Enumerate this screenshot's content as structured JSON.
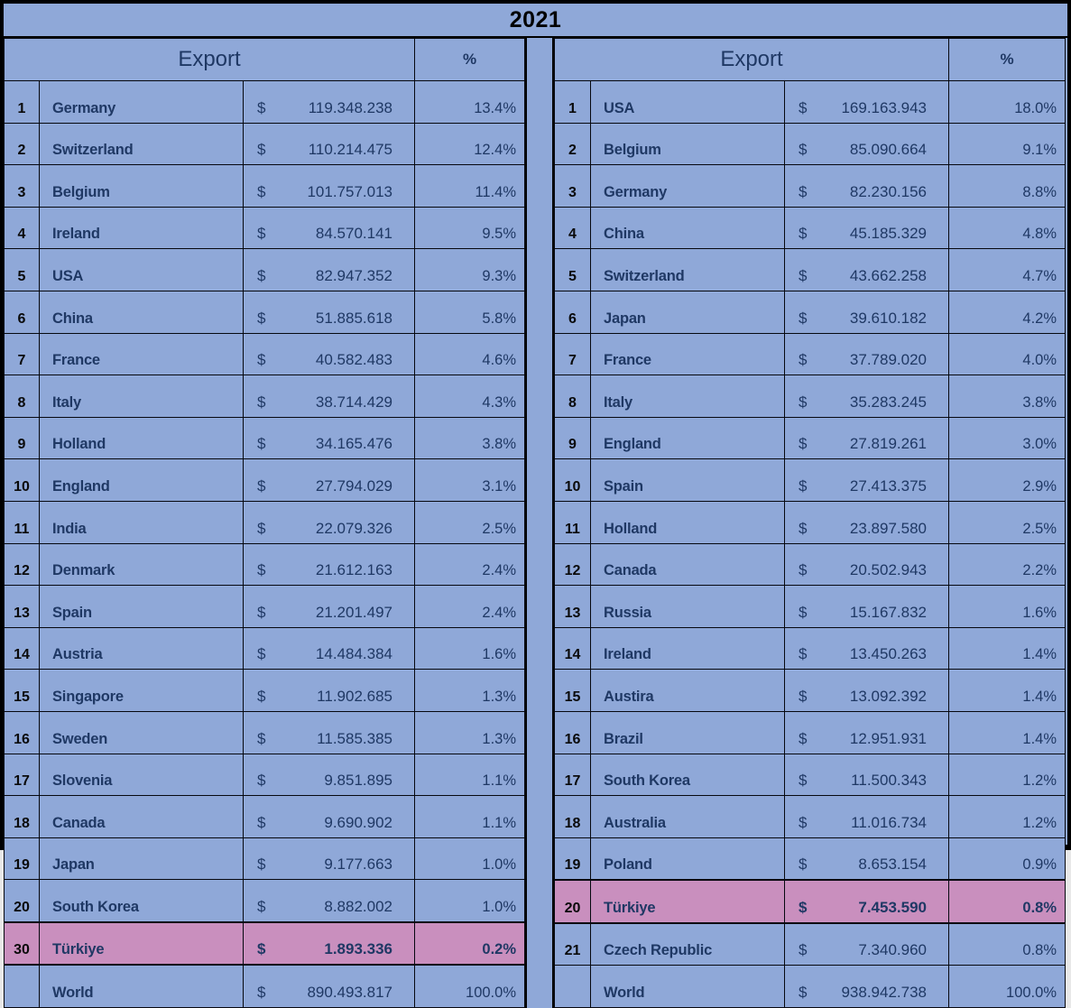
{
  "title": "2021",
  "colors": {
    "background": "#8FA8D8",
    "highlight_row": "#C98FBE",
    "text": "#1F3864",
    "rank_text": "#0A0A0A",
    "border": "#000000"
  },
  "chart_data": [
    {
      "type": "table",
      "position": "left",
      "export_label": "Export",
      "percent_label": "%",
      "columns": [
        "rank",
        "country",
        "export_usd",
        "percent"
      ],
      "rows": [
        {
          "rank": "1",
          "country": "Germany",
          "currency": "$",
          "value": "119.348.238",
          "percent": "13.4%",
          "highlight": false
        },
        {
          "rank": "2",
          "country": "Switzerland",
          "currency": "$",
          "value": "110.214.475",
          "percent": "12.4%",
          "highlight": false
        },
        {
          "rank": "3",
          "country": "Belgium",
          "currency": "$",
          "value": "101.757.013",
          "percent": "11.4%",
          "highlight": false
        },
        {
          "rank": "4",
          "country": "Ireland",
          "currency": "$",
          "value": "84.570.141",
          "percent": "9.5%",
          "highlight": false
        },
        {
          "rank": "5",
          "country": "USA",
          "currency": "$",
          "value": "82.947.352",
          "percent": "9.3%",
          "highlight": false
        },
        {
          "rank": "6",
          "country": "China",
          "currency": "$",
          "value": "51.885.618",
          "percent": "5.8%",
          "highlight": false
        },
        {
          "rank": "7",
          "country": "France",
          "currency": "$",
          "value": "40.582.483",
          "percent": "4.6%",
          "highlight": false
        },
        {
          "rank": "8",
          "country": "Italy",
          "currency": "$",
          "value": "38.714.429",
          "percent": "4.3%",
          "highlight": false
        },
        {
          "rank": "9",
          "country": "Holland",
          "currency": "$",
          "value": "34.165.476",
          "percent": "3.8%",
          "highlight": false
        },
        {
          "rank": "10",
          "country": "England",
          "currency": "$",
          "value": "27.794.029",
          "percent": "3.1%",
          "highlight": false
        },
        {
          "rank": "11",
          "country": "India",
          "currency": "$",
          "value": "22.079.326",
          "percent": "2.5%",
          "highlight": false
        },
        {
          "rank": "12",
          "country": "Denmark",
          "currency": "$",
          "value": "21.612.163",
          "percent": "2.4%",
          "highlight": false
        },
        {
          "rank": "13",
          "country": "Spain",
          "currency": "$",
          "value": "21.201.497",
          "percent": "2.4%",
          "highlight": false
        },
        {
          "rank": "14",
          "country": "Austria",
          "currency": "$",
          "value": "14.484.384",
          "percent": "1.6%",
          "highlight": false
        },
        {
          "rank": "15",
          "country": "Singapore",
          "currency": "$",
          "value": "11.902.685",
          "percent": "1.3%",
          "highlight": false
        },
        {
          "rank": "16",
          "country": "Sweden",
          "currency": "$",
          "value": "11.585.385",
          "percent": "1.3%",
          "highlight": false
        },
        {
          "rank": "17",
          "country": "Slovenia",
          "currency": "$",
          "value": "9.851.895",
          "percent": "1.1%",
          "highlight": false
        },
        {
          "rank": "18",
          "country": "Canada",
          "currency": "$",
          "value": "9.690.902",
          "percent": "1.1%",
          "highlight": false
        },
        {
          "rank": "19",
          "country": "Japan",
          "currency": "$",
          "value": "9.177.663",
          "percent": "1.0%",
          "highlight": false
        },
        {
          "rank": "20",
          "country": "South Korea",
          "currency": "$",
          "value": "8.882.002",
          "percent": "1.0%",
          "highlight": false
        },
        {
          "rank": "30",
          "country": "Türkiye",
          "currency": "$",
          "value": "1.893.336",
          "percent": "0.2%",
          "highlight": true
        },
        {
          "rank": "",
          "country": "World",
          "currency": "$",
          "value": "890.493.817",
          "percent": "100.0%",
          "highlight": false
        }
      ]
    },
    {
      "type": "table",
      "position": "right",
      "export_label": "Export",
      "percent_label": "%",
      "columns": [
        "rank",
        "country",
        "export_usd",
        "percent"
      ],
      "rows": [
        {
          "rank": "1",
          "country": "USA",
          "currency": "$",
          "value": "169.163.943",
          "percent": "18.0%",
          "highlight": false
        },
        {
          "rank": "2",
          "country": "Belgium",
          "currency": "$",
          "value": "85.090.664",
          "percent": "9.1%",
          "highlight": false
        },
        {
          "rank": "3",
          "country": "Germany",
          "currency": "$",
          "value": "82.230.156",
          "percent": "8.8%",
          "highlight": false
        },
        {
          "rank": "4",
          "country": "China",
          "currency": "$",
          "value": "45.185.329",
          "percent": "4.8%",
          "highlight": false
        },
        {
          "rank": "5",
          "country": "Switzerland",
          "currency": "$",
          "value": "43.662.258",
          "percent": "4.7%",
          "highlight": false
        },
        {
          "rank": "6",
          "country": "Japan",
          "currency": "$",
          "value": "39.610.182",
          "percent": "4.2%",
          "highlight": false
        },
        {
          "rank": "7",
          "country": "France",
          "currency": "$",
          "value": "37.789.020",
          "percent": "4.0%",
          "highlight": false
        },
        {
          "rank": "8",
          "country": "Italy",
          "currency": "$",
          "value": "35.283.245",
          "percent": "3.8%",
          "highlight": false
        },
        {
          "rank": "9",
          "country": "England",
          "currency": "$",
          "value": "27.819.261",
          "percent": "3.0%",
          "highlight": false
        },
        {
          "rank": "10",
          "country": "Spain",
          "currency": "$",
          "value": "27.413.375",
          "percent": "2.9%",
          "highlight": false
        },
        {
          "rank": "11",
          "country": "Holland",
          "currency": "$",
          "value": "23.897.580",
          "percent": "2.5%",
          "highlight": false
        },
        {
          "rank": "12",
          "country": "Canada",
          "currency": "$",
          "value": "20.502.943",
          "percent": "2.2%",
          "highlight": false
        },
        {
          "rank": "13",
          "country": "Russia",
          "currency": "$",
          "value": "15.167.832",
          "percent": "1.6%",
          "highlight": false
        },
        {
          "rank": "14",
          "country": "Ireland",
          "currency": "$",
          "value": "13.450.263",
          "percent": "1.4%",
          "highlight": false
        },
        {
          "rank": "15",
          "country": "Austira",
          "currency": "$",
          "value": "13.092.392",
          "percent": "1.4%",
          "highlight": false
        },
        {
          "rank": "16",
          "country": "Brazil",
          "currency": "$",
          "value": "12.951.931",
          "percent": "1.4%",
          "highlight": false
        },
        {
          "rank": "17",
          "country": "South Korea",
          "currency": "$",
          "value": "11.500.343",
          "percent": "1.2%",
          "highlight": false
        },
        {
          "rank": "18",
          "country": "Australia",
          "currency": "$",
          "value": "11.016.734",
          "percent": "1.2%",
          "highlight": false
        },
        {
          "rank": "19",
          "country": "Poland",
          "currency": "$",
          "value": "8.653.154",
          "percent": "0.9%",
          "highlight": false
        },
        {
          "rank": "20",
          "country": "Türkiye",
          "currency": "$",
          "value": "7.453.590",
          "percent": "0.8%",
          "highlight": true
        },
        {
          "rank": "21",
          "country": "Czech Republic",
          "currency": "$",
          "value": "7.340.960",
          "percent": "0.8%",
          "highlight": false
        },
        {
          "rank": "",
          "country": "World",
          "currency": "$",
          "value": "938.942.738",
          "percent": "100.0%",
          "highlight": false
        }
      ]
    }
  ]
}
